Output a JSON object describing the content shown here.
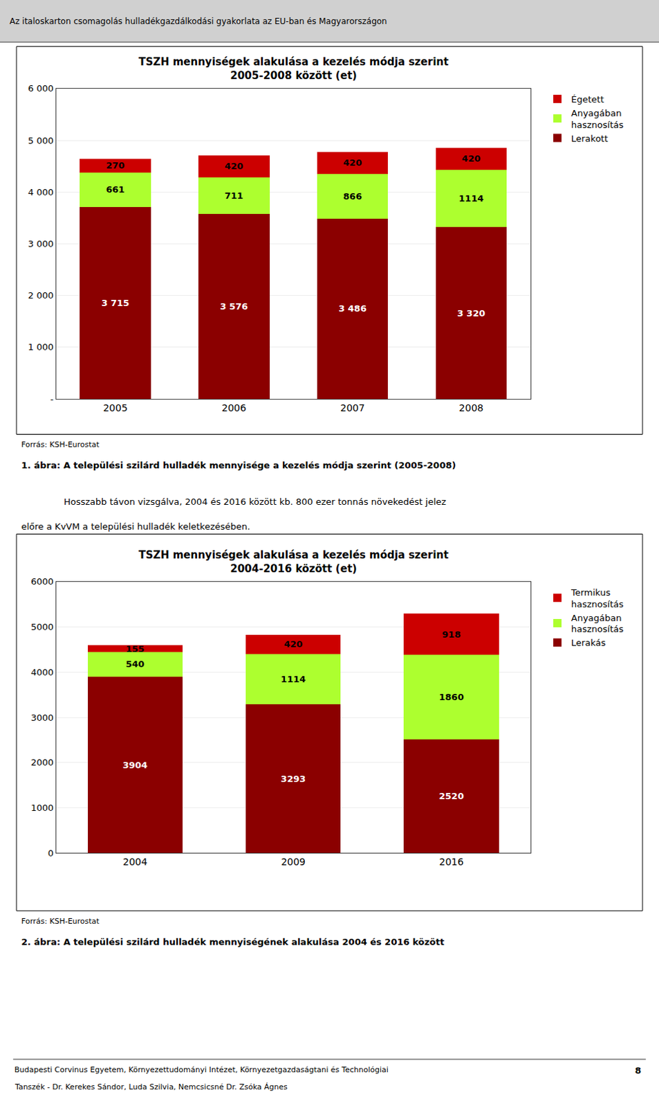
{
  "chart_data": [
    {
      "type": "bar",
      "stacked": true,
      "title": "TSZH mennyiségek alakulása a kezelés módja szerint",
      "subtitle": "2005-2008 között (et)",
      "categories": [
        "2005",
        "2006",
        "2007",
        "2008"
      ],
      "series": [
        {
          "name": "Lerakott",
          "color": "#8B0000",
          "values": [
            3715,
            3576,
            3486,
            3320
          ],
          "value_labels": [
            "3 715",
            "3 576",
            "3 486",
            "3 320"
          ]
        },
        {
          "name": "Anyagában\nhasznosítás",
          "color": "#ADFF2F",
          "values": [
            661,
            711,
            866,
            1114
          ]
        },
        {
          "name": "Égetett",
          "color": "#CC0000",
          "values": [
            270,
            420,
            420,
            420
          ]
        }
      ],
      "ylim": [
        0,
        6000
      ],
      "yticks": [
        {
          "value": 0,
          "label": "-"
        },
        {
          "value": 1000,
          "label": "1 000"
        },
        {
          "value": 2000,
          "label": "2 000"
        },
        {
          "value": 3000,
          "label": "3 000"
        },
        {
          "value": 4000,
          "label": "4 000"
        },
        {
          "value": 5000,
          "label": "5 000"
        },
        {
          "value": 6000,
          "label": "6 000"
        }
      ],
      "grid": true,
      "legend": "right",
      "data_labels": true,
      "annotations": [
        "Az italoskarton csomagolás hulladékgazdálkodási gyakorlata az EU-ban és Magyarországon",
        "Forrás: KSH-Eurostat",
        "1. ábra: A települési szilárd hulladék mennyisége a kezelés módja szerint (2005-2008)",
        "Hosszabb távon vizsgálva, 2004 és 2016 között kb. 800 ezer tonnás növekedést jelez",
        "előre a KvVM a települési hulladék keletkezésében."
      ]
    },
    {
      "type": "bar",
      "stacked": true,
      "title": "TSZH mennyiségek alakulása a kezelés módja szerint",
      "subtitle": "2004-2016 között (et)",
      "categories": [
        "2004",
        "2009",
        "2016"
      ],
      "series": [
        {
          "name": "Lerakás",
          "color": "#8B0000",
          "values": [
            3904,
            3293,
            2520
          ]
        },
        {
          "name": "Anyagában\nhasznosítás",
          "color": "#ADFF2F",
          "values": [
            540,
            1114,
            1860
          ]
        },
        {
          "name": "Termikus\nhasznosítás",
          "color": "#CC0000",
          "values": [
            155,
            420,
            918
          ]
        }
      ],
      "ylim": [
        0,
        6000
      ],
      "yticks": [
        0,
        1000,
        2000,
        3000,
        4000,
        5000,
        6000
      ],
      "grid": true,
      "legend": "right",
      "data_labels": true,
      "annotations": [
        "Forrás: KSH-Eurostat",
        "2. ábra: A települési szilárd hulladék mennyiségének alakulása 2004 és 2016 között",
        "Budapesti Corvinus Egyetem, Környezettudományi Intézet, Környezetgazdaságtani és Technológiai",
        "Tanszék - Dr. Kerekes Sándor, Luda Szilvia, Nemcsicsné Dr. Zsóka Ágnes",
        "8"
      ]
    }
  ]
}
